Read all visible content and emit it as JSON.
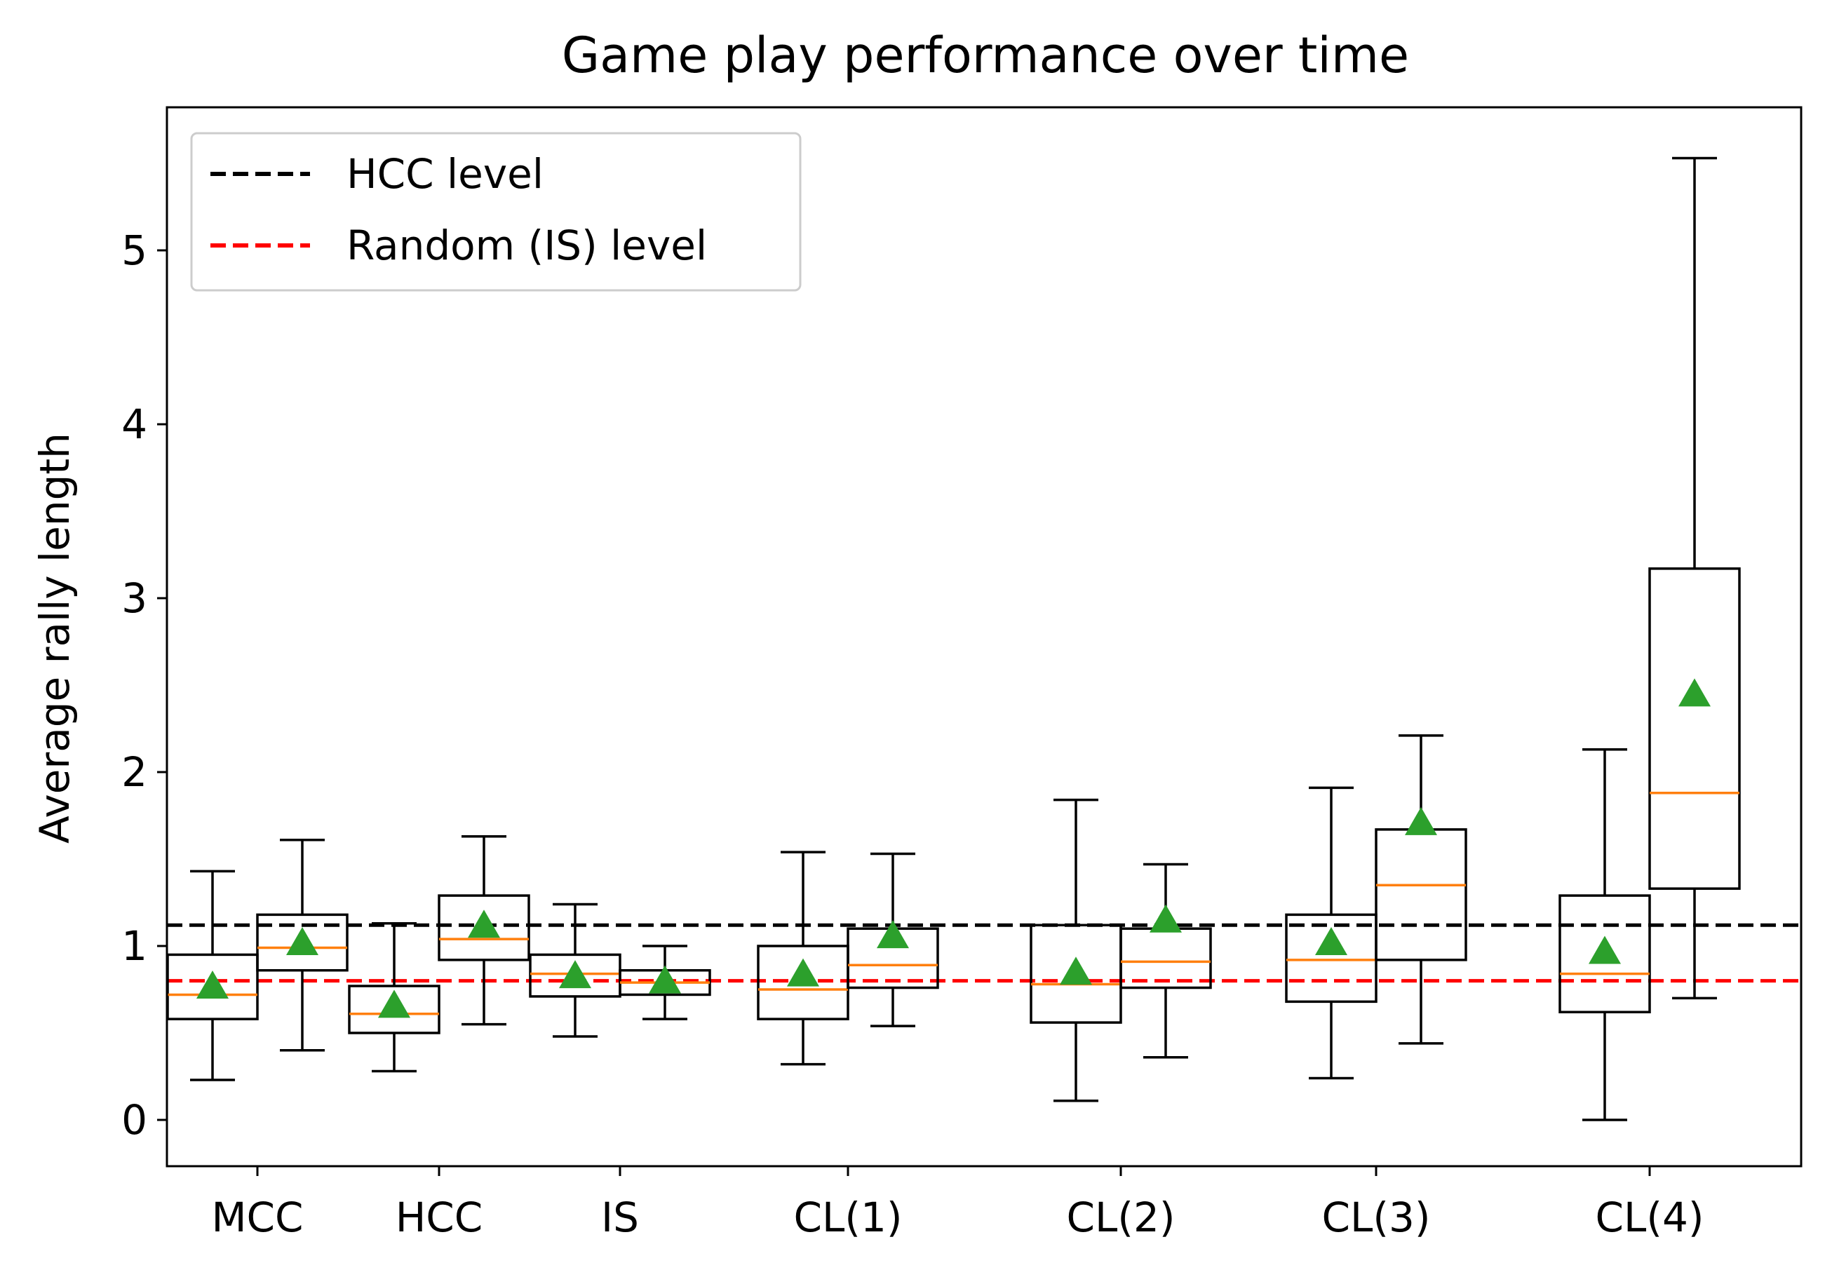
{
  "chart_data": {
    "type": "box",
    "title": "Game play performance over time",
    "xlabel": "",
    "ylabel": "Average rally length",
    "ylim": [
      -0.27,
      5.84
    ],
    "yticks": [
      0,
      1,
      2,
      3,
      4,
      5
    ],
    "categories": [
      "MCC",
      "HCC",
      "IS",
      "CL(1)",
      "CL(2)",
      "CL(3)",
      "CL(4)"
    ],
    "legend": {
      "position": "upper-left",
      "entries": [
        {
          "label": "HCC level",
          "color": "#000000",
          "style": "dashed"
        },
        {
          "label": "Random (IS) level",
          "color": "#ff0000",
          "style": "dashed"
        }
      ]
    },
    "reference_lines": [
      {
        "label": "HCC level",
        "y": 1.12,
        "color": "#000000"
      },
      {
        "label": "Random (IS) level",
        "y": 0.8,
        "color": "#ff0000"
      }
    ],
    "colors": {
      "median": "#ff7f0e",
      "mean": "#2ca02c",
      "box": "#000000"
    },
    "groups": [
      {
        "category": "MCC",
        "boxes": [
          {
            "whislo": 0.23,
            "q1": 0.58,
            "med": 0.72,
            "q3": 0.95,
            "whishi": 1.43,
            "mean": 0.77
          },
          {
            "whislo": 0.4,
            "q1": 0.86,
            "med": 0.99,
            "q3": 1.18,
            "whishi": 1.61,
            "mean": 1.02
          }
        ]
      },
      {
        "category": "HCC",
        "boxes": [
          {
            "whislo": 0.28,
            "q1": 0.5,
            "med": 0.61,
            "q3": 0.77,
            "whishi": 1.13,
            "mean": 0.66
          },
          {
            "whislo": 0.55,
            "q1": 0.92,
            "med": 1.04,
            "q3": 1.29,
            "whishi": 1.63,
            "mean": 1.12
          }
        ]
      },
      {
        "category": "IS",
        "boxes": [
          {
            "whislo": 0.48,
            "q1": 0.71,
            "med": 0.84,
            "q3": 0.95,
            "whishi": 1.24,
            "mean": 0.83
          },
          {
            "whislo": 0.58,
            "q1": 0.72,
            "med": 0.79,
            "q3": 0.86,
            "whishi": 1.0,
            "mean": 0.8
          }
        ]
      },
      {
        "category": "CL(1)",
        "boxes": [
          {
            "whislo": 0.32,
            "q1": 0.58,
            "med": 0.75,
            "q3": 1.0,
            "whishi": 1.54,
            "mean": 0.84
          },
          {
            "whislo": 0.54,
            "q1": 0.76,
            "med": 0.89,
            "q3": 1.1,
            "whishi": 1.53,
            "mean": 1.06
          }
        ]
      },
      {
        "category": "CL(2)",
        "boxes": [
          {
            "whislo": 0.11,
            "q1": 0.56,
            "med": 0.78,
            "q3": 1.12,
            "whishi": 1.84,
            "mean": 0.85
          },
          {
            "whislo": 0.36,
            "q1": 0.76,
            "med": 0.91,
            "q3": 1.1,
            "whishi": 1.47,
            "mean": 1.15
          }
        ]
      },
      {
        "category": "CL(3)",
        "boxes": [
          {
            "whislo": 0.24,
            "q1": 0.68,
            "med": 0.92,
            "q3": 1.18,
            "whishi": 1.91,
            "mean": 1.02
          },
          {
            "whislo": 0.44,
            "q1": 0.92,
            "med": 1.35,
            "q3": 1.67,
            "whishi": 2.21,
            "mean": 1.71
          }
        ]
      },
      {
        "category": "CL(4)",
        "boxes": [
          {
            "whislo": 0.0,
            "q1": 0.62,
            "med": 0.84,
            "q3": 1.29,
            "whishi": 2.13,
            "mean": 0.97
          },
          {
            "whislo": 0.7,
            "q1": 1.33,
            "med": 1.88,
            "q3": 3.17,
            "whishi": 5.53,
            "mean": 2.45
          }
        ]
      }
    ]
  }
}
